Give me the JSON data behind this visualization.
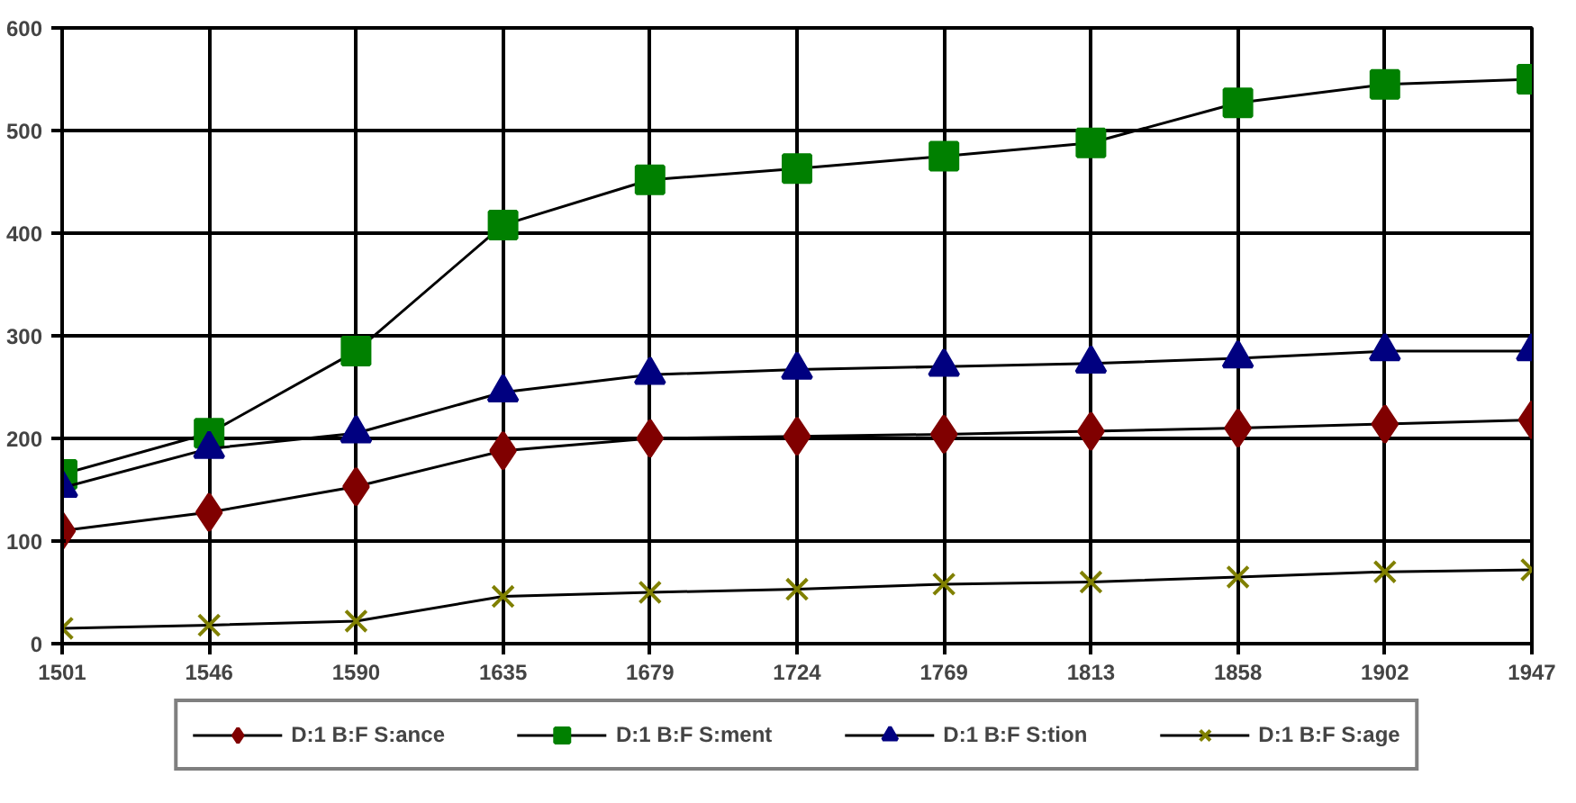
{
  "chart_data": {
    "type": "line",
    "categories": [
      "1501",
      "1546",
      "1590",
      "1635",
      "1679",
      "1724",
      "1769",
      "1813",
      "1858",
      "1902",
      "1947"
    ],
    "series": [
      {
        "name": "D:1 B:F S:ance",
        "color": "#800000",
        "marker": "diamond",
        "values": [
          110,
          128,
          153,
          188,
          200,
          202,
          204,
          207,
          210,
          214,
          218
        ]
      },
      {
        "name": "D:1 B:F S:ment",
        "color": "#008000",
        "marker": "square",
        "values": [
          165,
          205,
          285,
          408,
          452,
          463,
          475,
          488,
          527,
          545,
          550
        ]
      },
      {
        "name": "D:1 B:F S:tion",
        "color": "#000080",
        "marker": "triangle",
        "values": [
          152,
          190,
          205,
          245,
          262,
          267,
          270,
          273,
          278,
          285,
          285
        ]
      },
      {
        "name": "D:1 B:F S:age",
        "color": "#808000",
        "marker": "cross",
        "values": [
          15,
          18,
          22,
          46,
          50,
          53,
          58,
          60,
          65,
          70,
          72
        ]
      }
    ],
    "ylim": [
      0,
      600
    ],
    "yticks": [
      0,
      100,
      200,
      300,
      400,
      500,
      600
    ],
    "grid": true,
    "legend": "bottom",
    "line_style": "solid"
  }
}
